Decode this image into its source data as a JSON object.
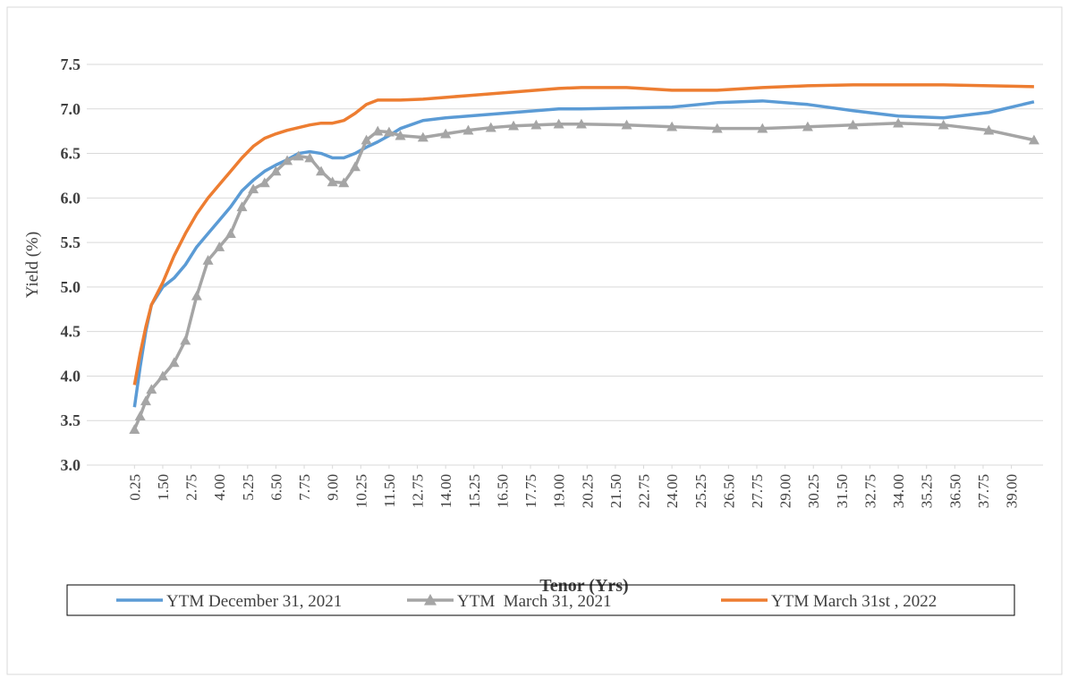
{
  "chart_data": {
    "type": "line",
    "x_label": "Tenor (Yrs)",
    "y_label": "Yield (%)",
    "x": [
      0.25,
      0.5,
      0.75,
      1,
      1.5,
      2,
      2.5,
      3,
      3.5,
      4,
      4.5,
      5,
      5.5,
      6,
      6.5,
      7,
      7.5,
      8,
      8.5,
      9,
      9.5,
      10,
      10.5,
      11,
      11.5,
      12,
      13,
      14,
      15,
      16,
      17,
      18,
      19,
      20,
      22,
      24,
      26,
      28,
      30,
      32,
      34,
      36,
      38,
      40
    ],
    "series": [
      {
        "name": "YTM December 31, 2021",
        "color": "#5b9bd5",
        "marker": "none",
        "values": [
          3.65,
          4.1,
          4.5,
          4.8,
          5.0,
          5.1,
          5.25,
          5.45,
          5.6,
          5.75,
          5.9,
          6.08,
          6.2,
          6.3,
          6.37,
          6.43,
          6.5,
          6.52,
          6.5,
          6.45,
          6.45,
          6.5,
          6.57,
          6.63,
          6.7,
          6.78,
          6.87,
          6.9,
          6.92,
          6.94,
          6.96,
          6.98,
          7.0,
          7.0,
          7.01,
          7.02,
          7.07,
          7.09,
          7.05,
          6.98,
          6.92,
          6.9,
          6.96,
          7.08
        ]
      },
      {
        "name": "YTM  March 31, 2021",
        "color": "#a5a5a5",
        "marker": "triangle",
        "values": [
          3.4,
          3.55,
          3.72,
          3.85,
          4.0,
          4.15,
          4.4,
          4.9,
          5.3,
          5.45,
          5.6,
          5.9,
          6.1,
          6.17,
          6.3,
          6.42,
          6.47,
          6.45,
          6.3,
          6.18,
          6.17,
          6.35,
          6.65,
          6.75,
          6.74,
          6.7,
          6.68,
          6.72,
          6.76,
          6.79,
          6.81,
          6.82,
          6.83,
          6.83,
          6.82,
          6.8,
          6.78,
          6.78,
          6.8,
          6.82,
          6.84,
          6.82,
          6.76,
          6.65
        ]
      },
      {
        "name": "YTM March 31st , 2022",
        "color": "#ed7d31",
        "marker": "none",
        "values": [
          3.9,
          4.25,
          4.55,
          4.8,
          5.05,
          5.35,
          5.6,
          5.82,
          6.0,
          6.15,
          6.3,
          6.45,
          6.58,
          6.67,
          6.72,
          6.76,
          6.79,
          6.82,
          6.84,
          6.84,
          6.87,
          6.95,
          7.05,
          7.1,
          7.1,
          7.1,
          7.11,
          7.13,
          7.15,
          7.17,
          7.19,
          7.21,
          7.23,
          7.24,
          7.24,
          7.21,
          7.21,
          7.24,
          7.26,
          7.27,
          7.27,
          7.27,
          7.26,
          7.25
        ]
      }
    ],
    "xlim": [
      0,
      40.4
    ],
    "xticks": [
      0.25,
      {
        "value": 1.5,
        "label": "1.50"
      },
      2.75,
      {
        "value": 4,
        "label": "4.00"
      },
      5.25,
      {
        "value": 6.5,
        "label": "6.50"
      },
      7.75,
      {
        "value": 9,
        "label": "9.00"
      },
      10.25,
      {
        "value": 11.5,
        "label": "11.50"
      },
      12.75,
      {
        "value": 14,
        "label": "14.00"
      },
      15.25,
      {
        "value": 16.5,
        "label": "16.50"
      },
      17.75,
      {
        "value": 19,
        "label": "19.00"
      },
      20.25,
      {
        "value": 21.5,
        "label": "21.50"
      },
      22.75,
      {
        "value": 24,
        "label": "24.00"
      },
      25.25,
      {
        "value": 26.5,
        "label": "26.50"
      },
      27.75,
      {
        "value": 29,
        "label": "29.00"
      },
      30.25,
      {
        "value": 31.5,
        "label": "31.50"
      },
      32.75,
      {
        "value": 34,
        "label": "34.00"
      },
      35.25,
      {
        "value": 36.5,
        "label": "36.50"
      },
      37.75,
      {
        "value": 39,
        "label": "39.00"
      }
    ],
    "ylim": [
      3,
      7.5
    ],
    "yticks": [
      {
        "value": 3,
        "label": "3.0"
      },
      3.5,
      {
        "value": 4,
        "label": "4.0"
      },
      4.5,
      {
        "value": 5,
        "label": "5.0"
      },
      5.5,
      {
        "value": 6,
        "label": "6.0"
      },
      6.5,
      {
        "value": 7,
        "label": "7.0"
      },
      7.5
    ],
    "grid": true,
    "legend": "bottom"
  }
}
